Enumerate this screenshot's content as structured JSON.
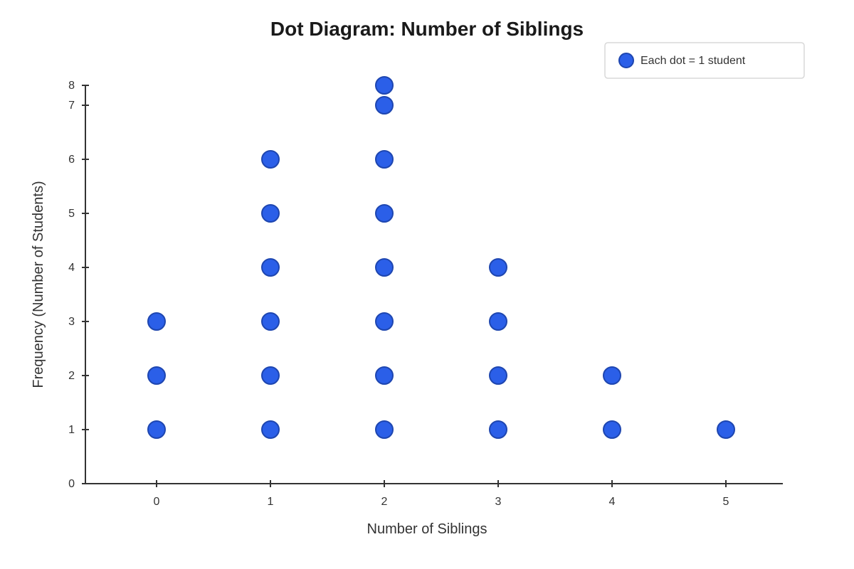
{
  "chart_data": {
    "type": "scatter",
    "subtype": "dot-plot",
    "title": "Dot Diagram: Number of Siblings",
    "xlabel": "Number of Siblings",
    "ylabel": "Frequency (Number of Students)",
    "categories": [
      "0",
      "1",
      "2",
      "3",
      "4",
      "5"
    ],
    "x": [
      0,
      1,
      2,
      3,
      4,
      5
    ],
    "counts": [
      3,
      6,
      8,
      4,
      2,
      1
    ],
    "xlim": [
      -0.625,
      5.5
    ],
    "ylim": [
      0,
      8
    ],
    "yticks": [
      "0",
      "1",
      "2",
      "3",
      "4",
      "5",
      "6",
      "7",
      "8"
    ],
    "grid": false,
    "legend": {
      "placement": "top-right",
      "label": "Each dot = 1 student"
    },
    "colors": {
      "dot_fill": "#2b5fe8",
      "dot_stroke": "#1e46b0",
      "axis": "#333333",
      "text": "#333333",
      "title": "#1a1a1a"
    }
  }
}
